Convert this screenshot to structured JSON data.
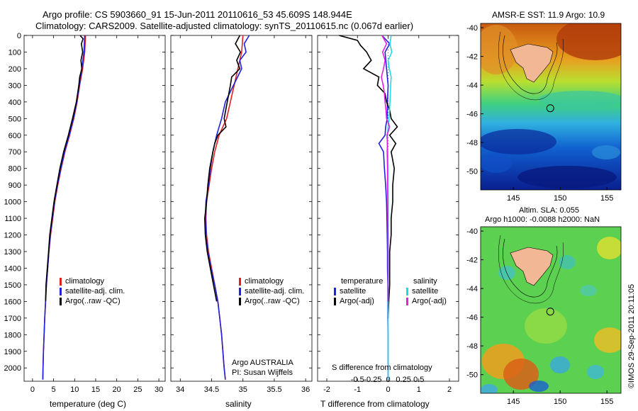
{
  "header": {
    "title_line1": "Argo profile: CS 5903660_91 15-Jun-2011 20110616_53 45.609S 148.944E",
    "title_line2": "Climatology: CARS2009. Satellite-adjusted climatology: synTS_20110615.nc (0.067d earlier)"
  },
  "credit": "©IMOS 29-Sep-2011 20:11:05",
  "chart_data": [
    {
      "id": "temperature",
      "type": "line",
      "xlabel": "temperature (deg C)",
      "xticks": [
        0,
        5,
        10,
        15,
        20,
        25,
        30
      ],
      "xlim": [
        -2,
        31.5
      ],
      "ylim": [
        2080,
        0
      ],
      "yticks": [
        0,
        100,
        200,
        300,
        400,
        500,
        600,
        700,
        800,
        900,
        1000,
        1100,
        1200,
        1300,
        1400,
        1500,
        1600,
        1700,
        1800,
        1900,
        2000
      ],
      "legend": [
        "climatology",
        "satellite-adj. clim.",
        "Argo(..raw -QC)"
      ],
      "series": [
        {
          "name": "climatology",
          "color": "#e02020",
          "depth": [
            0,
            100,
            200,
            300,
            400,
            500,
            600,
            700,
            800,
            900,
            1000,
            1100,
            1200,
            1300,
            1400,
            1500,
            1600,
            1700,
            1800,
            1900,
            2000,
            2070
          ],
          "values": [
            12.6,
            12.4,
            11.9,
            11.2,
            10.6,
            9.8,
            8.8,
            7.7,
            6.8,
            6.0,
            5.3,
            4.8,
            4.3,
            3.9,
            3.6,
            3.3,
            3.1,
            2.9,
            2.75,
            2.6,
            2.5,
            2.45
          ]
        },
        {
          "name": "satellite-adj. clim.",
          "color": "#2020e0",
          "depth": [
            0,
            100,
            200,
            300,
            400,
            500,
            600,
            700,
            800,
            900,
            1000,
            1100,
            1200,
            1300,
            1400,
            1500,
            1600,
            1700,
            1800,
            1900,
            2000,
            2070
          ],
          "values": [
            12.4,
            12.2,
            11.7,
            11.1,
            10.5,
            9.7,
            8.7,
            7.6,
            6.7,
            5.9,
            5.2,
            4.7,
            4.2,
            3.9,
            3.6,
            3.3,
            3.1,
            2.9,
            2.75,
            2.6,
            2.5,
            2.45
          ]
        },
        {
          "name": "Argo(..raw -QC)",
          "color": "#000000",
          "depth": [
            0,
            20,
            50,
            100,
            150,
            200,
            250,
            300,
            400,
            500,
            600,
            700,
            800,
            900,
            1000,
            1100,
            1200,
            1300,
            1400,
            1500,
            1600
          ],
          "values": [
            11.3,
            12.0,
            11.6,
            11.9,
            11.5,
            11.7,
            11.2,
            11.0,
            10.4,
            9.5,
            8.5,
            7.4,
            6.5,
            5.8,
            5.1,
            4.6,
            4.1,
            3.8,
            3.5,
            3.2,
            3.1
          ]
        }
      ]
    },
    {
      "id": "salinity",
      "type": "line",
      "xlabel": "salinity",
      "xticks": [
        34,
        34.5,
        35,
        35.5,
        36
      ],
      "xlim": [
        33.85,
        36.1
      ],
      "ylim": [
        2080,
        0
      ],
      "legend": [
        "climatology",
        "satellite-adj. clim.",
        "Argo(..raw -QC)"
      ],
      "annotation": [
        "Argo AUSTRALIA",
        "PI: Susan Wijffels"
      ],
      "series": [
        {
          "name": "climatology",
          "color": "#e02020",
          "depth": [
            0,
            100,
            200,
            300,
            400,
            500,
            600,
            700,
            800,
            900,
            1000,
            1100,
            1200,
            1300,
            1400,
            1500,
            1600,
            1700,
            1800,
            1900,
            2000,
            2070
          ],
          "values": [
            35.0,
            34.98,
            34.92,
            34.86,
            34.8,
            34.74,
            34.62,
            34.55,
            34.5,
            34.46,
            34.42,
            34.41,
            34.42,
            34.45,
            34.5,
            34.55,
            34.6,
            34.63,
            34.66,
            34.68,
            34.7,
            34.72
          ]
        },
        {
          "name": "satellite-adj. clim.",
          "color": "#2020e0",
          "depth": [
            0,
            50,
            100,
            150,
            200,
            300,
            400,
            500,
            600,
            700,
            800,
            900,
            1000,
            1100,
            1200,
            1300,
            1400,
            1500,
            1600,
            1700,
            1800,
            1900,
            2000,
            2070
          ],
          "values": [
            35.1,
            35.02,
            35.05,
            34.95,
            34.98,
            34.85,
            34.72,
            34.66,
            34.58,
            34.52,
            34.48,
            34.45,
            34.41,
            34.4,
            34.41,
            34.44,
            34.49,
            34.55,
            34.6,
            34.63,
            34.66,
            34.68,
            34.7,
            34.72
          ]
        },
        {
          "name": "Argo(..raw -QC)",
          "color": "#000000",
          "depth": [
            0,
            50,
            100,
            150,
            200,
            250,
            300,
            400,
            500,
            550,
            600,
            650,
            700,
            800,
            900,
            1000,
            1100,
            1200,
            1300,
            1400,
            1500,
            1600
          ],
          "values": [
            34.95,
            34.88,
            34.96,
            34.9,
            34.95,
            34.82,
            34.8,
            34.75,
            34.7,
            34.73,
            34.6,
            34.55,
            34.52,
            34.47,
            34.44,
            34.42,
            34.39,
            34.4,
            34.43,
            34.48,
            34.53,
            34.58
          ]
        }
      ]
    },
    {
      "id": "difference",
      "type": "line",
      "xlabel": "T difference from climatology",
      "xlabel2": "S difference from climatology",
      "xticks": [
        -2,
        -1,
        0,
        1,
        2
      ],
      "xticks2": [
        -0.5,
        -0.25,
        0,
        0.25,
        0.5
      ],
      "xlim": [
        -2.3,
        2.3
      ],
      "ylim": [
        2080,
        0
      ],
      "legend_temperature": [
        "temperature",
        "satellite",
        "Argo(-adj)"
      ],
      "legend_salinity": [
        "salinity",
        "satellite",
        "Argo(-adj)"
      ],
      "series": [
        {
          "name": "T satellite",
          "color": "#2020e0",
          "depth": [
            0,
            50,
            100,
            200,
            300,
            400,
            500,
            550,
            600,
            650,
            700,
            800,
            900,
            1000,
            1100,
            1200,
            1300,
            1400,
            1500,
            1600,
            1700,
            1800,
            1900,
            2000,
            2070
          ],
          "values": [
            -0.2,
            0.05,
            -0.1,
            -0.05,
            0.0,
            -0.02,
            -0.03,
            -0.08,
            -0.1,
            -0.3,
            -0.15,
            -0.12,
            -0.08,
            -0.05,
            -0.04,
            -0.03,
            -0.02,
            -0.02,
            -0.01,
            -0.01,
            -0.01,
            0.0,
            0.0,
            0.0,
            0.0
          ]
        },
        {
          "name": "T Argo(-adj)",
          "color": "#000000",
          "depth": [
            0,
            30,
            60,
            100,
            150,
            200,
            250,
            300,
            350,
            400,
            450,
            500,
            550,
            600,
            650,
            700,
            800,
            900,
            1000,
            1100,
            1200,
            1300,
            1400,
            1500,
            1600,
            1700
          ],
          "values": [
            -1.6,
            -1.0,
            -0.9,
            -0.7,
            -0.55,
            -0.8,
            -0.3,
            -0.35,
            -0.1,
            -0.05,
            0.05,
            0.1,
            0.3,
            0.05,
            0.25,
            0.1,
            0.2,
            0.15,
            0.15,
            0.1,
            0.1,
            0.05,
            0.05,
            0.05,
            0.02,
            0.0
          ]
        },
        {
          "name": "S satellite",
          "color": "#20d8e8",
          "depth": [
            0,
            50,
            100,
            150,
            200,
            250,
            300,
            400,
            500,
            550,
            600,
            650,
            700,
            800,
            900,
            1000,
            1100,
            1200,
            1300,
            1400,
            1500,
            1600,
            1700,
            1800,
            1900,
            2000,
            2070
          ],
          "values": [
            0.1,
            0.06,
            0.12,
            0.0,
            0.04,
            0.1,
            0.08,
            0.06,
            0.03,
            0.0,
            -0.02,
            -0.03,
            -0.01,
            0.0,
            0.0,
            0.0,
            0.0,
            0.0,
            0.0,
            0.0,
            0.0,
            0.0,
            0.0,
            0.0,
            0.0,
            0.0,
            0.0
          ]
        },
        {
          "name": "S Argo(-adj)",
          "color": "#e020e0",
          "depth": [
            0,
            50,
            100,
            150,
            200,
            250,
            300,
            350,
            400,
            450,
            500,
            550,
            600,
            650,
            700,
            800,
            900,
            1000,
            1100,
            1200,
            1300,
            1400,
            1500,
            1600
          ],
          "values": [
            -0.2,
            -0.05,
            -0.18,
            -0.1,
            -0.15,
            -0.22,
            -0.16,
            -0.12,
            -0.1,
            -0.07,
            -0.05,
            0.05,
            -0.04,
            -0.02,
            -0.03,
            -0.02,
            -0.02,
            -0.01,
            -0.01,
            0.0,
            0.0,
            0.0,
            0.0,
            0.0
          ]
        }
      ]
    },
    {
      "id": "sst-map",
      "type": "heatmap",
      "title": "AMSR-E SST: 11.9 Argo: 10.9",
      "xticks": [
        145,
        150,
        155
      ],
      "yticks": [
        -40,
        -42,
        -44,
        -46,
        -48,
        -50
      ],
      "xlim": [
        141.5,
        156.5
      ],
      "ylim": [
        -51.3,
        -39.7
      ],
      "argo_position": {
        "lon": 148.944,
        "lat": -45.609
      }
    },
    {
      "id": "sla-map",
      "type": "heatmap",
      "title": "Altim. SLA: 0.055",
      "title2": "Argo h1000: -0.0088 h2000: NaN",
      "xticks": [
        145,
        150,
        155
      ],
      "yticks": [
        -40,
        -42,
        -44,
        -46,
        -48,
        -50
      ],
      "xlim": [
        141.5,
        156.5
      ],
      "ylim": [
        -51.3,
        -39.7
      ],
      "argo_position": {
        "lon": 148.944,
        "lat": -45.609
      }
    }
  ]
}
